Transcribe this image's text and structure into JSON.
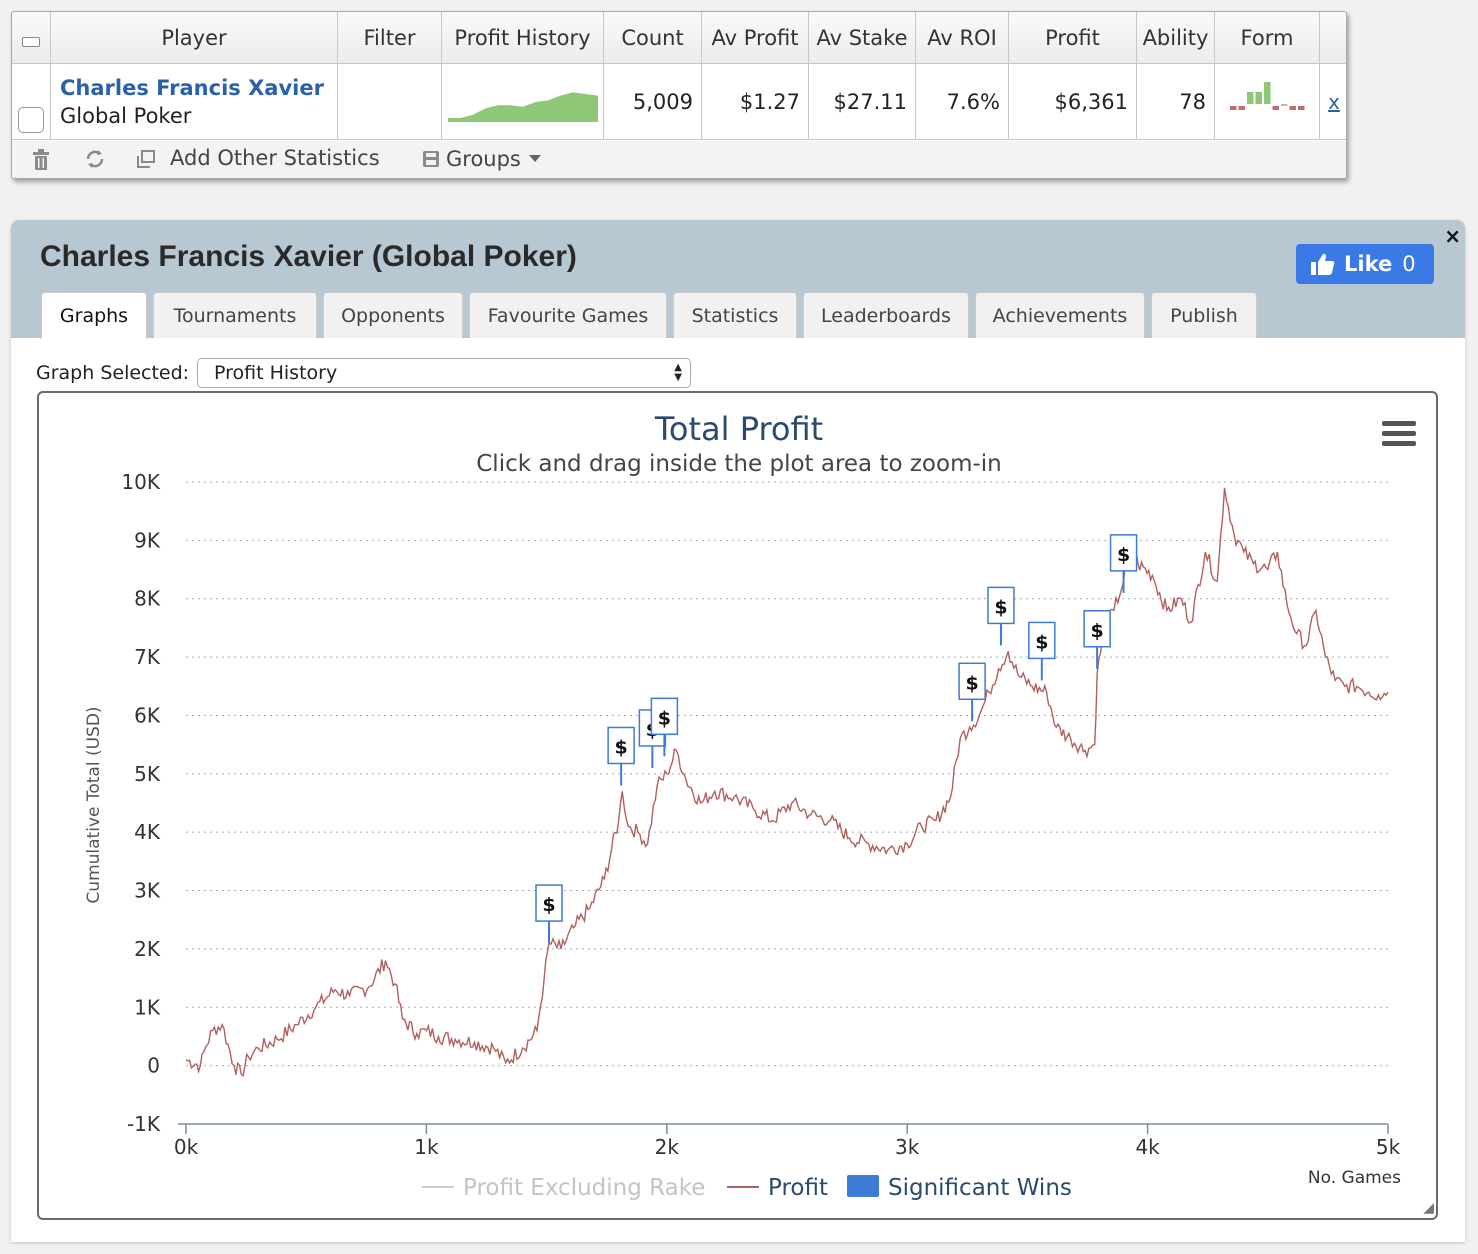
{
  "table": {
    "headers": [
      "Player",
      "Filter",
      "Profit History",
      "Count",
      "Av Profit",
      "Av Stake",
      "Av ROI",
      "Profit",
      "Ability",
      "Form"
    ],
    "row": {
      "player": "Charles Francis Xavier",
      "site": "Global Poker",
      "filter": "",
      "count": "5,009",
      "av_profit": "$1.27",
      "av_stake": "$27.11",
      "av_roi": "7.6%",
      "profit": "$6,361",
      "ability": "78",
      "remove": "x"
    },
    "form_bars": [
      -1,
      -1,
      1,
      1,
      2,
      -1,
      0,
      -1,
      -1
    ],
    "toolbar": {
      "delete_icon": "trash-icon",
      "refresh_icon": "refresh-icon",
      "add_stats": "Add Other Statistics",
      "groups": "Groups"
    }
  },
  "panel": {
    "title": "Charles Francis Xavier (Global Poker)",
    "like_label": "Like",
    "like_count": "0",
    "close": "×",
    "tabs": [
      "Graphs",
      "Tournaments",
      "Opponents",
      "Favourite Games",
      "Statistics",
      "Leaderboards",
      "Achievements",
      "Publish"
    ],
    "graph_selected_label": "Graph Selected:",
    "graph_selected_value": "Profit History"
  },
  "colors": {
    "profit_line": "#b0615e",
    "significant_wins": "#3e7bd6",
    "title": "#2b4a6e",
    "accent_link": "#2b61a8",
    "sparkline": "#8ec777"
  },
  "chart_data": {
    "type": "line",
    "title": "Total Profit",
    "subtitle": "Click and drag inside the plot area to zoom-in",
    "ylabel": "Cumulative Total (USD)",
    "xlabel": "No. Games",
    "xlim": [
      0,
      5000
    ],
    "ylim": [
      -1000,
      10000
    ],
    "x_ticks": [
      "0k",
      "1k",
      "2k",
      "3k",
      "4k",
      "5k"
    ],
    "y_ticks": [
      "-1K",
      "0",
      "1K",
      "2K",
      "3K",
      "4K",
      "5K",
      "6K",
      "7K",
      "8K",
      "9K",
      "10K"
    ],
    "grid": true,
    "legend_position": "bottom",
    "legend": [
      "Profit Excluding Rake",
      "Profit",
      "Significant Wins"
    ],
    "series": [
      {
        "name": "Profit",
        "x": [
          0,
          60,
          80,
          110,
          150,
          200,
          230,
          260,
          300,
          380,
          460,
          540,
          620,
          680,
          760,
          830,
          870,
          900,
          960,
          1000,
          1050,
          1120,
          1200,
          1280,
          1330,
          1400,
          1460,
          1490,
          1510,
          1560,
          1620,
          1680,
          1740,
          1800,
          1815,
          1840,
          1880,
          1920,
          1960,
          2000,
          2040,
          2080,
          2140,
          2200,
          2280,
          2360,
          2440,
          2520,
          2600,
          2680,
          2760,
          2840,
          2920,
          3000,
          3060,
          3120,
          3180,
          3220,
          3260,
          3300,
          3340,
          3380,
          3420,
          3460,
          3520,
          3580,
          3620,
          3680,
          3740,
          3780,
          3790,
          3820,
          3860,
          3900,
          3930,
          3960,
          4020,
          4080,
          4140,
          4180,
          4240,
          4290,
          4320,
          4360,
          4400,
          4440,
          4500,
          4540,
          4580,
          4620,
          4660,
          4700,
          4740,
          4780,
          4820,
          4870,
          4920,
          4960,
          5000
        ],
        "y": [
          100,
          0,
          300,
          600,
          700,
          0,
          -150,
          150,
          300,
          450,
          700,
          1000,
          1300,
          1200,
          1350,
          1800,
          1400,
          800,
          550,
          600,
          500,
          450,
          400,
          300,
          50,
          300,
          600,
          1500,
          2100,
          2000,
          2400,
          2700,
          3200,
          4200,
          4700,
          4100,
          4000,
          3800,
          4800,
          5000,
          5400,
          4900,
          4500,
          4700,
          4600,
          4400,
          4200,
          4500,
          4300,
          4200,
          3900,
          3800,
          3700,
          3800,
          4100,
          4200,
          4600,
          5600,
          5800,
          6000,
          6400,
          6800,
          7100,
          6700,
          6500,
          6400,
          5800,
          5600,
          5400,
          5500,
          6700,
          7500,
          7800,
          8300,
          9100,
          8600,
          8400,
          7800,
          8000,
          7600,
          8800,
          8300,
          9900,
          9100,
          8800,
          8600,
          8500,
          8800,
          7900,
          7400,
          7200,
          7800,
          7000,
          6600,
          6500,
          6500,
          6400,
          6350,
          6400
        ]
      },
      {
        "name": "Significant Wins",
        "x": [
          1510,
          1810,
          1940,
          1990,
          3270,
          3390,
          3560,
          3790,
          3900
        ],
        "y": [
          2100,
          4800,
          5100,
          5300,
          5900,
          7200,
          6600,
          6800,
          8100
        ]
      }
    ],
    "profit_history_sparkline": [
      0,
      0,
      0.1,
      0.3,
      0.4,
      0.4,
      0.35,
      0.5,
      0.55,
      0.7,
      0.8,
      0.75,
      0.7
    ]
  }
}
